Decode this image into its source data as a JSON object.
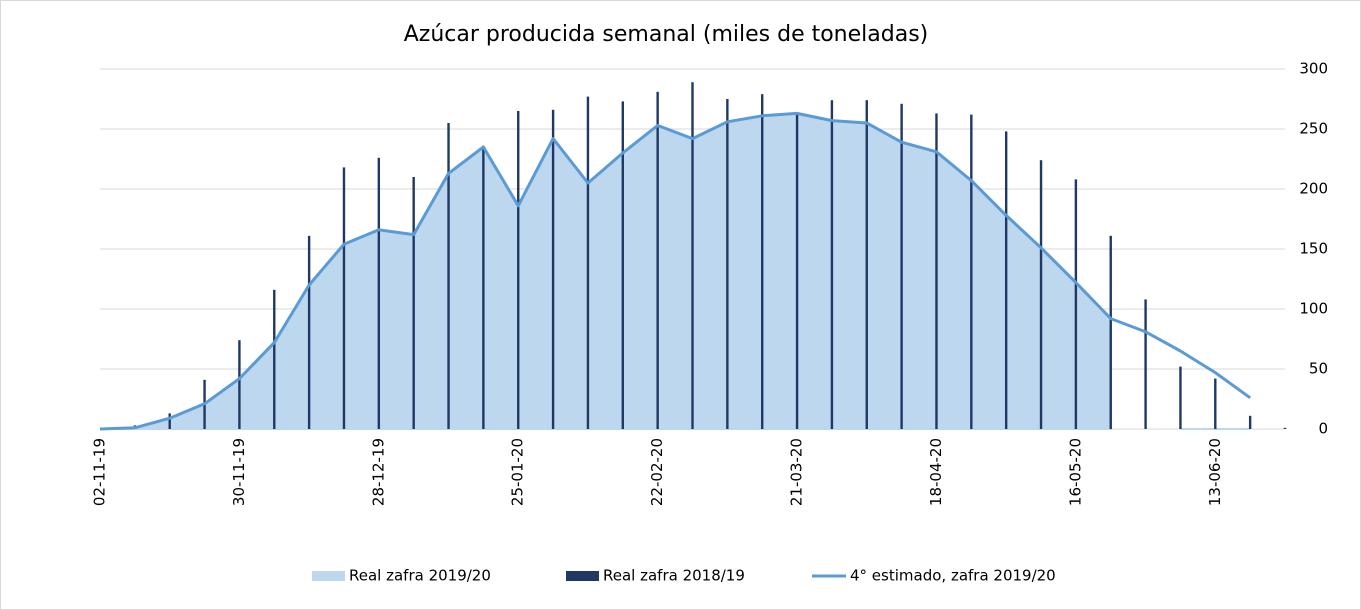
{
  "chart_data": {
    "type": "bar-line-area",
    "title": "Azúcar producida semanal (miles de toneladas)",
    "categories": [
      "02-11-19",
      null,
      null,
      null,
      "30-11-19",
      null,
      null,
      null,
      "28-12-19",
      null,
      null,
      null,
      "25-01-20",
      null,
      null,
      null,
      "22-02-20",
      null,
      null,
      null,
      "21-03-20",
      null,
      null,
      null,
      "18-04-20",
      null,
      null,
      null,
      "16-05-20",
      null,
      null,
      null,
      "13-06-20",
      null,
      null
    ],
    "series": [
      {
        "name": "Real zafra 2019/20",
        "type": "area",
        "color": "#bdd7ee",
        "values": [
          0,
          1,
          9,
          21,
          42,
          72,
          120,
          154,
          166,
          162,
          213,
          235,
          186,
          242,
          205,
          230,
          253,
          242,
          256,
          261,
          263,
          257,
          255,
          239,
          231,
          207,
          178,
          151,
          119,
          92,
          null,
          0,
          0,
          0,
          null
        ]
      },
      {
        "name": "Real zafra 2018/19",
        "type": "bar",
        "color": "#1f3864",
        "values": [
          0,
          3,
          13,
          41,
          74,
          116,
          161,
          218,
          226,
          210,
          255,
          236,
          265,
          266,
          277,
          273,
          281,
          289,
          275,
          279,
          263,
          274,
          274,
          271,
          263,
          262,
          248,
          224,
          208,
          161,
          108,
          52,
          42,
          11,
          1
        ]
      },
      {
        "name": "4° estimado, zafra 2019/20",
        "type": "line",
        "color": "#5b9bd5",
        "values": [
          0,
          1,
          9,
          21,
          42,
          72,
          120,
          154,
          166,
          162,
          213,
          235,
          186,
          242,
          205,
          230,
          253,
          242,
          256,
          261,
          263,
          257,
          255,
          239,
          231,
          207,
          178,
          151,
          122,
          92,
          81,
          65,
          47,
          26,
          null
        ]
      }
    ],
    "ylim": [
      0,
      300
    ],
    "yticks": [
      0,
      50,
      100,
      150,
      200,
      250,
      300
    ],
    "grid": true,
    "legend": "bottom"
  }
}
